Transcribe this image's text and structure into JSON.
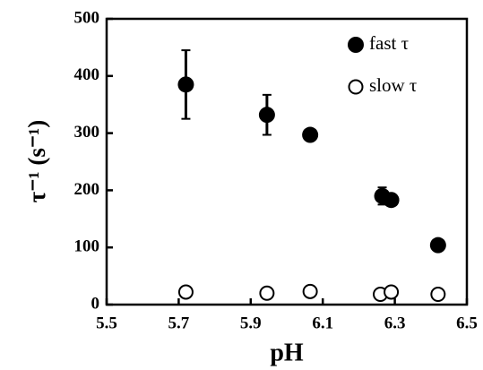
{
  "chart_data": {
    "type": "scatter",
    "x_label": "pH",
    "y_label": "τ⁻¹ (s⁻¹)",
    "xlim": [
      5.5,
      6.5
    ],
    "xticks": [
      5.5,
      5.7,
      5.9,
      6.1,
      6.3,
      6.5
    ],
    "ylim": [
      0,
      500
    ],
    "yticks": [
      0,
      100,
      200,
      300,
      400,
      500
    ],
    "legend": "top-right",
    "series": [
      {
        "name": "fast τ",
        "color": "#000000",
        "marker": "filled",
        "x": [
          5.72,
          5.945,
          6.065,
          6.265,
          6.29,
          6.42
        ],
        "values": [
          385,
          332,
          297,
          190,
          183,
          104
        ],
        "errors": [
          60,
          35,
          null,
          15,
          null,
          null
        ]
      },
      {
        "name": "slow τ",
        "color": "#000000",
        "marker": "open",
        "x": [
          5.72,
          5.945,
          6.065,
          6.26,
          6.29,
          6.42
        ],
        "values": [
          22,
          20,
          23,
          18,
          22,
          18
        ]
      }
    ]
  }
}
